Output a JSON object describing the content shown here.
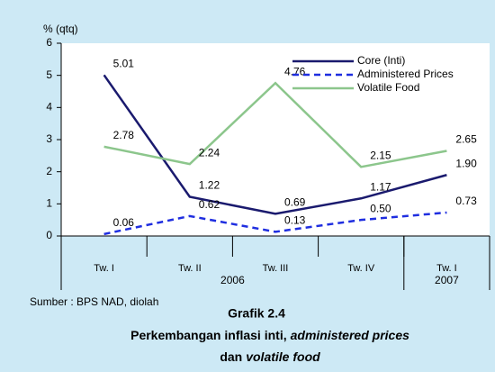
{
  "chart_data": {
    "type": "line",
    "y_label": "% (qtq)",
    "title": "Grafik 2.4",
    "subtitle_lines": [
      [
        "Perkembangan inflasi inti,",
        "administered prices"
      ],
      [
        "dan",
        "volatile food"
      ]
    ],
    "source": "Sumber : BPS NAD, diolah",
    "categories": [
      "Tw. I",
      "Tw. II",
      "Tw. III",
      "Tw. IV",
      "Tw. I"
    ],
    "groups": [
      {
        "label": "2006",
        "span": 4
      },
      {
        "label": "2007",
        "span": 1
      }
    ],
    "ylim": [
      0,
      6
    ],
    "yticks": [
      0,
      1,
      2,
      3,
      4,
      5,
      6
    ],
    "legend": "upper right",
    "series": [
      {
        "name": "Core (Inti)",
        "color": "#1a1a6e",
        "dash": false,
        "values": [
          5.01,
          1.22,
          0.69,
          1.17,
          1.9
        ],
        "value_labels": [
          "5.01",
          "1.22",
          "0.69",
          "1.17",
          "1.90"
        ]
      },
      {
        "name": "Administered Prices",
        "color": "#1f2ee0",
        "dash": true,
        "values": [
          0.06,
          0.62,
          0.13,
          0.5,
          0.73
        ],
        "value_labels": [
          "0.06",
          "0.62",
          "0.13",
          "0.50",
          "0.73"
        ]
      },
      {
        "name": "Volatile Food",
        "color": "#8cc68c",
        "dash": false,
        "values": [
          2.78,
          2.24,
          4.76,
          2.15,
          2.65
        ],
        "value_labels": [
          "2.78",
          "2.24",
          "4.76",
          "2.15",
          "2.65"
        ]
      }
    ]
  }
}
